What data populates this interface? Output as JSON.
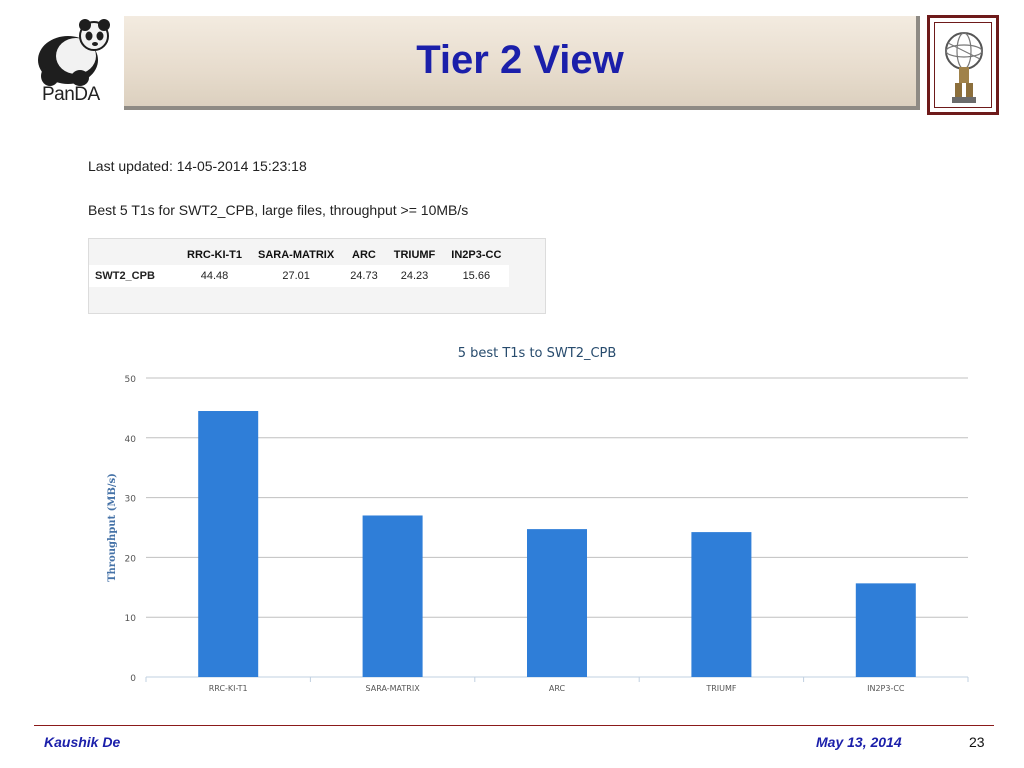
{
  "slide": {
    "title": "Tier 2 View",
    "logo_left_label": "PanDA",
    "last_updated": "Last updated: 14-05-2014 15:23:18",
    "description": "Best 5 T1s for SWT2_CPB, large files, throughput >= 10MB/s"
  },
  "table": {
    "columns": [
      "RRC-KI-T1",
      "SARA-MATRIX",
      "ARC",
      "TRIUMF",
      "IN2P3-CC"
    ],
    "rows": [
      {
        "label": "SWT2_CPB",
        "values": [
          "44.48",
          "27.01",
          "24.73",
          "24.23",
          "15.66"
        ]
      }
    ]
  },
  "chart_data": {
    "type": "bar",
    "title": "5 best T1s to SWT2_CPB",
    "xlabel": "",
    "ylabel": "Throughput (MB/s)",
    "categories": [
      "RRC-KI-T1",
      "SARA-MATRIX",
      "ARC",
      "TRIUMF",
      "IN2P3-CC"
    ],
    "values": [
      44.48,
      27.01,
      24.73,
      24.23,
      15.66
    ],
    "ylim": [
      0,
      50
    ],
    "yticks": [
      0,
      10,
      20,
      30,
      40,
      50
    ],
    "grid": true,
    "legend": "none",
    "bar_color": "#2f7ed8"
  },
  "footer": {
    "author": "Kaushik De",
    "date": "May 13, 2014",
    "page": "23"
  },
  "colors": {
    "title": "#1b1faa",
    "chart_title": "#274b6d",
    "axis_label": "#4572a7",
    "footer_rule": "#8b1a1a"
  }
}
